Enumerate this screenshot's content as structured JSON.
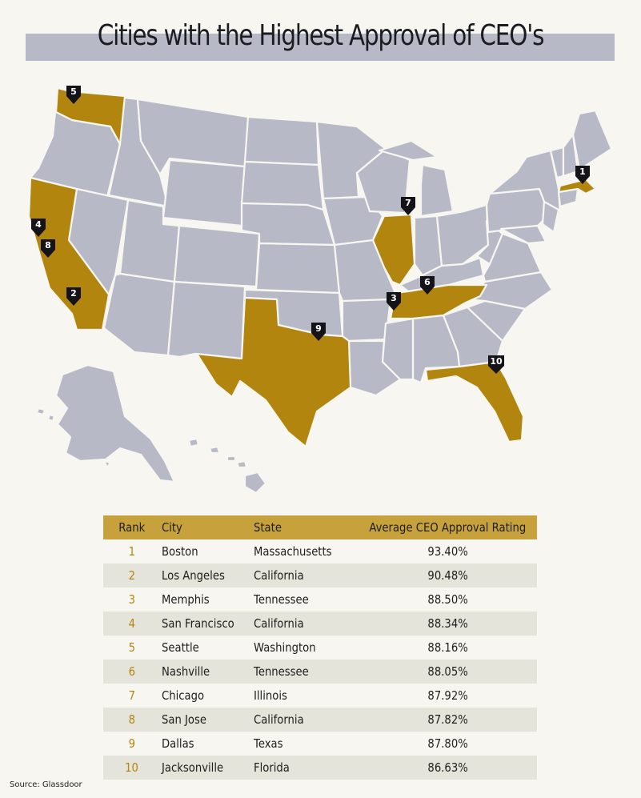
{
  "title": "Cities with the Highest Approval of CEO's",
  "table": {
    "headers": [
      "Rank",
      "City",
      "State",
      "Average CEO Approval Rating"
    ],
    "rows": [
      {
        "rank": "1",
        "city": "Boston",
        "state": "Massachusetts",
        "rating": "93.40%"
      },
      {
        "rank": "2",
        "city": "Los Angeles",
        "state": "California",
        "rating": "90.48%"
      },
      {
        "rank": "3",
        "city": "Memphis",
        "state": "Tennessee",
        "rating": "88.50%"
      },
      {
        "rank": "4",
        "city": "San Francisco",
        "state": "California",
        "rating": "88.34%"
      },
      {
        "rank": "5",
        "city": "Seattle",
        "state": "Washington",
        "rating": "88.16%"
      },
      {
        "rank": "6",
        "city": "Nashville",
        "state": "Tennessee",
        "rating": "88.05%"
      },
      {
        "rank": "7",
        "city": "Chicago",
        "state": "Illinois",
        "rating": "87.92%"
      },
      {
        "rank": "8",
        "city": "San Jose",
        "state": "California",
        "rating": "87.82%"
      },
      {
        "rank": "9",
        "city": "Dallas",
        "state": "Texas",
        "rating": "87.80%"
      },
      {
        "rank": "10",
        "city": "Jacksonville",
        "state": "Florida",
        "rating": "86.63%"
      }
    ]
  },
  "map": {
    "highlighted_states": [
      "Washington",
      "California",
      "Texas",
      "Illinois",
      "Tennessee",
      "Florida",
      "Massachusetts"
    ],
    "colors": {
      "highlight": "#b2860e",
      "state": "#b7b9c7",
      "background": "#f7f6f0",
      "header": "#c6a13c",
      "title_bar": "#b8b9c6"
    },
    "markers": [
      {
        "label": "1"
      },
      {
        "label": "2"
      },
      {
        "label": "3"
      },
      {
        "label": "4"
      },
      {
        "label": "5"
      },
      {
        "label": "6"
      },
      {
        "label": "7"
      },
      {
        "label": "8"
      },
      {
        "label": "9"
      },
      {
        "label": "10"
      }
    ]
  },
  "source": "Source: Glassdoor"
}
